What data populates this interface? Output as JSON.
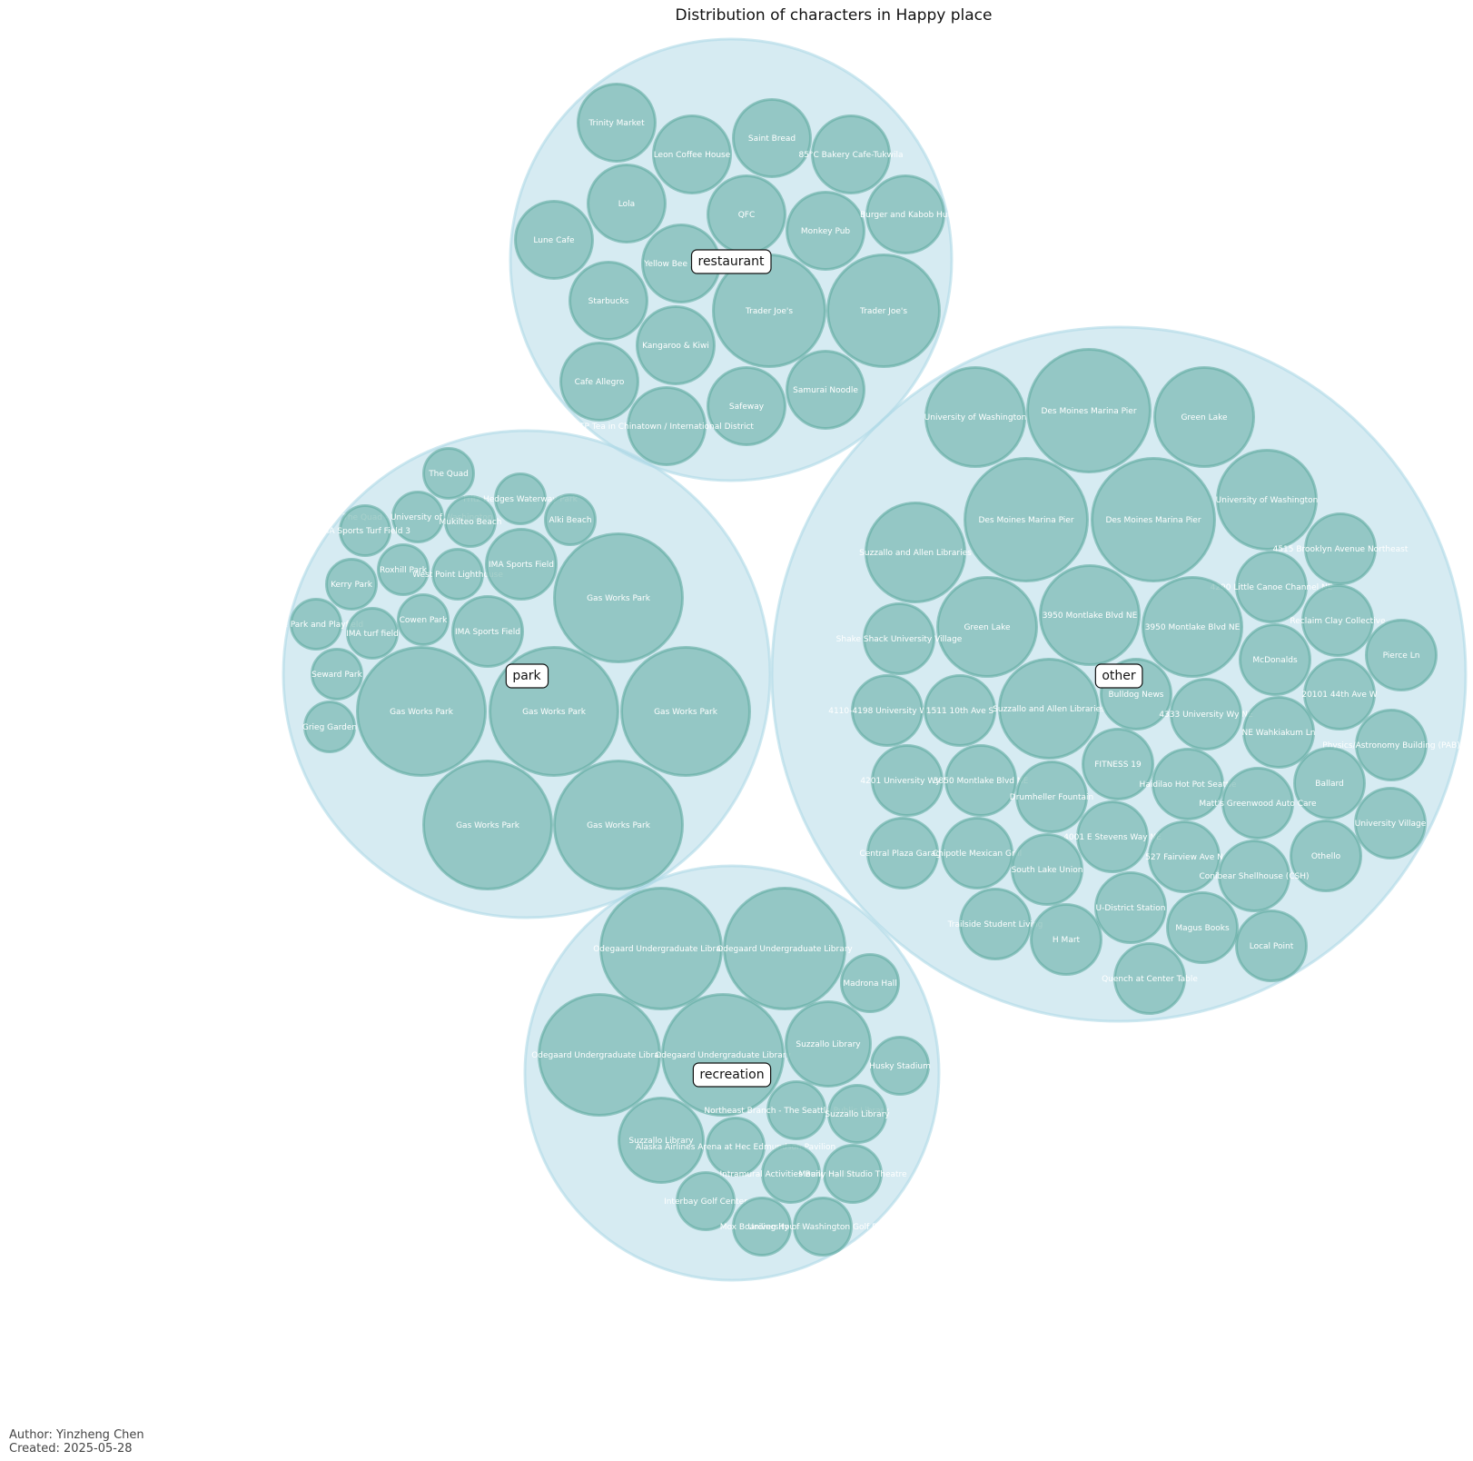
{
  "title": "Distribution of characters in Happy place",
  "footer": {
    "author": "Author: Yinzheng Chen",
    "created": "Created: 2025-05-28"
  },
  "colors": {
    "group_fill": "#add8e6",
    "leaf_fill": "#5faaa0",
    "leaf_stroke": "#5faaa0",
    "leaf_text": "#ffffff",
    "label_box": "#ffffff",
    "label_border": "#111111"
  },
  "chart_data": {
    "type": "circle-packing",
    "title": "Distribution of characters in Happy place",
    "groups": [
      {
        "name": "restaurant",
        "items": [
          "Trinity Market",
          "Leon Coffee House",
          "Saint Bread",
          "85°C Bakery Cafe-Tukwila",
          "Lola",
          "QFC",
          "Monkey Pub",
          "Burger and Kabob Hut",
          "Lune Cafe",
          "Yellow Bee Market",
          "Starbucks",
          "Trader Joe's",
          "Trader Joe's",
          "Kangaroo & Kiwi",
          "Cafe Allegro",
          "Samurai Noodle",
          "Safeway",
          "TP Tea in Chinatown / International District"
        ]
      },
      {
        "name": "park",
        "items": [
          "The Quad",
          "Fritz Hedges Waterway Park",
          "The Quad - University of Washington",
          "Mukilteo Beach",
          "Alki Beach",
          "IMA Sports Turf Field 3",
          "Roxhill Park",
          "West Point Lighthouse",
          "IMA Sports Field",
          "Kerry Park",
          "Gas Works Park",
          "Cowen Park",
          "IMA Sports Field",
          "Lake Park and Playfield",
          "IMA turf field",
          "Seward Park",
          "Gas Works Park",
          "Gas Works Park",
          "Gas Works Park",
          "Grieg Garden",
          "Gas Works Park",
          "Gas Works Park"
        ]
      },
      {
        "name": "other",
        "items": [
          "University of Washington",
          "Des Moines Marina Pier",
          "Green Lake",
          "Des Moines Marina Pier",
          "Des Moines Marina Pier",
          "University of Washington",
          "Suzzallo and Allen Libraries",
          "4515 Brooklyn Avenue Northeast",
          "4290 Little Canoe Channel NE",
          "Green Lake",
          "3950 Montlake Blvd NE",
          "3950 Montlake Blvd NE",
          "Shake Shack University Village",
          "Reclaim Clay Collective",
          "Pierce Ln",
          "McDonalds",
          "4110-4198 University Wy NE",
          "1511 10th Ave S",
          "Suzzallo and Allen Libraries",
          "Bulldog News",
          "4333 University Wy NE",
          "20101 44th Ave W",
          "NE Wahkiakum Ln",
          "Physics/Astronomy Building (PAB)",
          "4201 University Wy NE",
          "3850 Montlake Blvd NE",
          "FITNESS 19",
          "Haidilao Hot Pot Seattle",
          "Ballard",
          "Drumheller Fountain",
          "Matt's Greenwood Auto Care",
          "University Village",
          "Central Plaza Garage",
          "Chipotle Mexican Grill",
          "4001 E Stevens Way NE",
          "527 Fairview Ave N",
          "Othello",
          "South Lake Union",
          "Conibear Shellhouse (CSH)",
          "Trailside Student Living",
          "U-District Station",
          "H Mart",
          "Magus Books",
          "Local Point",
          "Quench at Center Table"
        ]
      },
      {
        "name": "recreation",
        "items": [
          "Odegaard Undergraduate Library",
          "Odegaard Undergraduate Library",
          "Madrona Hall",
          "Odegaard Undergraduate Library",
          "Odegaard Undergraduate Library",
          "Suzzallo Library",
          "Husky Stadium",
          "Northeast Branch - The Seattle Public Library",
          "Suzzallo Library",
          "Suzzallo Library",
          "Alaska Airlines Arena at Hec Edmundson Pavilion",
          "Intramural Activities Building (IMA)",
          "Meany Hall Studio Theatre",
          "Interbay Golf Center",
          "Mox Boarding House",
          "University of Washington Golf Range"
        ]
      }
    ]
  }
}
